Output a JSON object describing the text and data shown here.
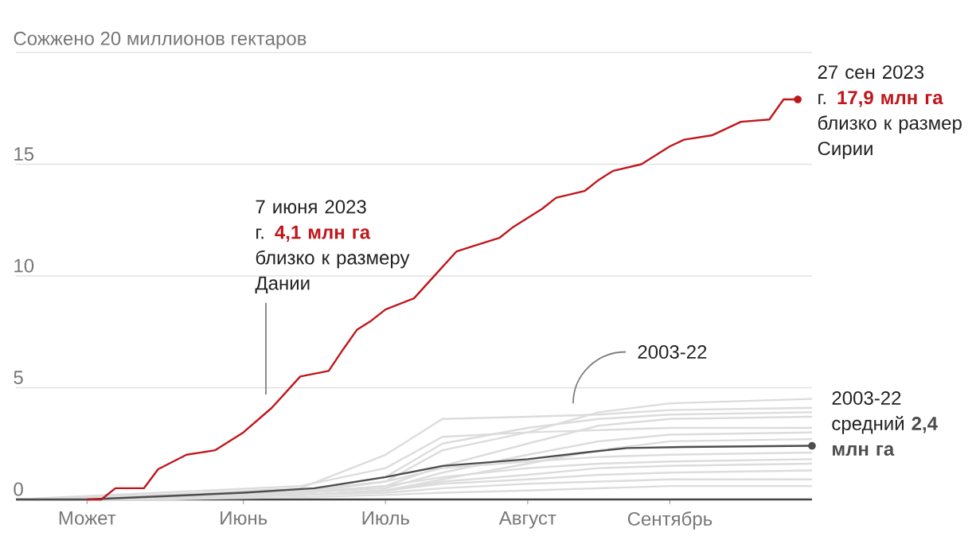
{
  "chart_data": {
    "type": "line",
    "categories": [
      null,
      null,
      null,
      null,
      null,
      "Может",
      null,
      null,
      null,
      null,
      null,
      null,
      null,
      null,
      null,
      null,
      "Июнь",
      null,
      null,
      null,
      null,
      null,
      null,
      null,
      null,
      null,
      "Июль",
      null,
      null,
      null,
      null,
      null,
      null,
      null,
      null,
      null,
      "Август",
      null,
      null,
      null,
      null,
      null,
      null,
      null,
      null,
      null,
      "Сентябрь",
      null,
      null,
      null,
      null,
      null,
      null,
      null,
      null,
      null,
      null
    ],
    "ylim": [
      0,
      20
    ],
    "yticks": [
      0,
      5,
      10,
      15,
      {
        "value": 20,
        "label": "Сожжено 20 миллионов гектаров"
      }
    ],
    "grid": "y",
    "series": [
      {
        "color": "#dcdcdc",
        "values": [
          0,
          null,
          null,
          null,
          null,
          null,
          null,
          null,
          null,
          null,
          0.1,
          null,
          null,
          null,
          null,
          null,
          null,
          null,
          null,
          null,
          0.3,
          null,
          null,
          null,
          null,
          null,
          0.8,
          null,
          null,
          null,
          2.2,
          null,
          null,
          null,
          null,
          null,
          3.0,
          null,
          null,
          null,
          null,
          3.9,
          null,
          null,
          null,
          null,
          4.3,
          null,
          null,
          null,
          null,
          null,
          null,
          null,
          null,
          null,
          4.5
        ]
      },
      {
        "color": "#dcdcdc",
        "values": [
          0,
          null,
          null,
          null,
          null,
          null,
          null,
          null,
          null,
          null,
          0.2,
          null,
          null,
          null,
          null,
          null,
          null,
          null,
          null,
          null,
          0.5,
          null,
          null,
          null,
          null,
          null,
          2.0,
          null,
          null,
          null,
          3.6,
          null,
          null,
          null,
          null,
          null,
          3.7,
          null,
          null,
          null,
          null,
          3.8,
          null,
          null,
          null,
          null,
          4.0,
          null,
          null,
          null,
          null,
          null,
          null,
          null,
          null,
          null,
          4.1
        ]
      },
      {
        "color": "#dcdcdc",
        "values": [
          0,
          null,
          null,
          null,
          null,
          null,
          null,
          null,
          null,
          null,
          0.1,
          null,
          null,
          null,
          null,
          null,
          null,
          null,
          null,
          null,
          0.4,
          null,
          null,
          null,
          null,
          null,
          1.0,
          null,
          null,
          null,
          2.5,
          null,
          null,
          null,
          null,
          null,
          3.2,
          null,
          null,
          null,
          null,
          3.6,
          null,
          null,
          null,
          null,
          3.8,
          null,
          null,
          null,
          null,
          null,
          null,
          null,
          null,
          null,
          3.9
        ]
      },
      {
        "color": "#dcdcdc",
        "values": [
          0,
          null,
          null,
          null,
          null,
          null,
          null,
          null,
          null,
          null,
          0.1,
          null,
          null,
          null,
          null,
          null,
          null,
          null,
          null,
          null,
          0.3,
          null,
          null,
          null,
          null,
          null,
          0.6,
          null,
          null,
          null,
          1.5,
          null,
          null,
          null,
          null,
          null,
          2.5,
          null,
          null,
          null,
          null,
          3.3,
          null,
          null,
          null,
          null,
          3.6,
          null,
          null,
          null,
          null,
          null,
          null,
          null,
          null,
          null,
          3.7
        ]
      },
      {
        "color": "#dcdcdc",
        "values": [
          0,
          null,
          null,
          null,
          null,
          null,
          null,
          null,
          null,
          null,
          0.3,
          null,
          null,
          null,
          null,
          null,
          null,
          null,
          null,
          null,
          0.6,
          null,
          null,
          null,
          null,
          null,
          1.4,
          null,
          null,
          null,
          2.8,
          null,
          null,
          null,
          null,
          null,
          3.0,
          null,
          null,
          null,
          null,
          3.1,
          null,
          null,
          null,
          null,
          3.2,
          null,
          null,
          null,
          null,
          null,
          null,
          null,
          null,
          null,
          3.2
        ]
      },
      {
        "color": "#dcdcdc",
        "values": [
          0,
          null,
          null,
          null,
          null,
          null,
          null,
          null,
          null,
          null,
          0.1,
          null,
          null,
          null,
          null,
          null,
          null,
          null,
          null,
          null,
          0.3,
          null,
          null,
          null,
          null,
          null,
          0.5,
          null,
          null,
          null,
          1.2,
          null,
          null,
          null,
          null,
          null,
          2.0,
          null,
          null,
          null,
          null,
          2.6,
          null,
          null,
          null,
          null,
          2.9,
          null,
          null,
          null,
          null,
          null,
          null,
          null,
          null,
          null,
          3.0
        ]
      },
      {
        "color": "#dcdcdc",
        "values": [
          0,
          null,
          null,
          null,
          null,
          null,
          null,
          null,
          null,
          null,
          0.1,
          null,
          null,
          null,
          null,
          null,
          null,
          null,
          null,
          null,
          0.2,
          null,
          null,
          null,
          null,
          null,
          0.4,
          null,
          null,
          null,
          0.9,
          null,
          null,
          null,
          null,
          null,
          1.6,
          null,
          null,
          null,
          null,
          2.2,
          null,
          null,
          null,
          null,
          2.6,
          null,
          null,
          null,
          null,
          null,
          null,
          null,
          null,
          null,
          2.7
        ]
      },
      {
        "color": "#dcdcdc",
        "values": [
          0,
          null,
          null,
          null,
          null,
          null,
          null,
          null,
          null,
          null,
          0.2,
          null,
          null,
          null,
          null,
          null,
          null,
          null,
          null,
          null,
          0.4,
          null,
          null,
          null,
          null,
          null,
          0.8,
          null,
          null,
          null,
          1.4,
          null,
          null,
          null,
          null,
          null,
          1.7,
          null,
          null,
          null,
          null,
          1.9,
          null,
          null,
          null,
          null,
          2.0,
          null,
          null,
          null,
          null,
          null,
          null,
          null,
          null,
          null,
          2.1
        ]
      },
      {
        "color": "#dcdcdc",
        "values": [
          0,
          null,
          null,
          null,
          null,
          null,
          null,
          null,
          null,
          null,
          0.1,
          null,
          null,
          null,
          null,
          null,
          null,
          null,
          null,
          null,
          0.3,
          null,
          null,
          null,
          null,
          null,
          0.6,
          null,
          null,
          null,
          1.0,
          null,
          null,
          null,
          null,
          null,
          1.4,
          null,
          null,
          null,
          null,
          1.6,
          null,
          null,
          null,
          null,
          1.7,
          null,
          null,
          null,
          null,
          null,
          null,
          null,
          null,
          null,
          1.8
        ]
      },
      {
        "color": "#dcdcdc",
        "values": [
          0,
          null,
          null,
          null,
          null,
          null,
          null,
          null,
          null,
          null,
          0.0,
          null,
          null,
          null,
          null,
          null,
          null,
          null,
          null,
          null,
          0.2,
          null,
          null,
          null,
          null,
          null,
          0.4,
          null,
          null,
          null,
          0.8,
          null,
          null,
          null,
          null,
          null,
          1.1,
          null,
          null,
          null,
          null,
          1.4,
          null,
          null,
          null,
          null,
          1.5,
          null,
          null,
          null,
          null,
          null,
          null,
          null,
          null,
          null,
          1.6
        ]
      },
      {
        "color": "#dcdcdc",
        "values": [
          0,
          null,
          null,
          null,
          null,
          null,
          null,
          null,
          null,
          null,
          0.1,
          null,
          null,
          null,
          null,
          null,
          null,
          null,
          null,
          null,
          0.2,
          null,
          null,
          null,
          null,
          null,
          0.4,
          null,
          null,
          null,
          0.7,
          null,
          null,
          null,
          null,
          null,
          0.9,
          null,
          null,
          null,
          null,
          1.1,
          null,
          null,
          null,
          null,
          1.2,
          null,
          null,
          null,
          null,
          null,
          null,
          null,
          null,
          null,
          1.3
        ]
      },
      {
        "color": "#dcdcdc",
        "values": [
          0,
          null,
          null,
          null,
          null,
          null,
          null,
          null,
          null,
          null,
          0.1,
          null,
          null,
          null,
          null,
          null,
          null,
          null,
          null,
          null,
          0.2,
          null,
          null,
          null,
          null,
          null,
          0.3,
          null,
          null,
          null,
          0.5,
          null,
          null,
          null,
          null,
          null,
          0.7,
          null,
          null,
          null,
          null,
          0.8,
          null,
          null,
          null,
          null,
          0.9,
          null,
          null,
          null,
          null,
          null,
          null,
          null,
          null,
          null,
          0.9
        ]
      },
      {
        "color": "#dcdcdc",
        "values": [
          0,
          null,
          null,
          null,
          null,
          null,
          null,
          null,
          null,
          null,
          0.0,
          null,
          null,
          null,
          null,
          null,
          null,
          null,
          null,
          null,
          0.1,
          null,
          null,
          null,
          null,
          null,
          0.2,
          null,
          null,
          null,
          0.3,
          null,
          null,
          null,
          null,
          null,
          0.4,
          null,
          null,
          null,
          null,
          0.5,
          null,
          null,
          null,
          null,
          0.6,
          null,
          null,
          null,
          null,
          null,
          null,
          null,
          null,
          null,
          0.6
        ]
      },
      {
        "color": "#4d4d4d",
        "values": [
          0,
          null,
          null,
          null,
          null,
          0,
          null,
          null,
          null,
          null,
          null,
          null,
          null,
          null,
          null,
          null,
          0.3,
          null,
          null,
          null,
          null,
          0.5,
          null,
          null,
          null,
          null,
          1.0,
          null,
          null,
          null,
          1.5,
          null,
          null,
          null,
          null,
          null,
          1.8,
          null,
          null,
          null,
          2.1,
          null,
          null,
          2.3,
          null,
          null,
          null,
          2.35,
          null,
          null,
          null,
          null,
          null,
          null,
          null,
          null,
          2.4
        ]
      },
      {
        "color": "#c0161b",
        "values": [
          null,
          null,
          null,
          null,
          null,
          0,
          0,
          0.5,
          null,
          0.5,
          1.35,
          null,
          2.0,
          null,
          2.2,
          null,
          3.0,
          null,
          4.1,
          null,
          5.5,
          null,
          5.75,
          6.7,
          7.6,
          8.0,
          8.5,
          null,
          9.0,
          9.7,
          null,
          11.1,
          11.3,
          null,
          11.7,
          12.2,
          12.6,
          13.0,
          13.5,
          null,
          13.8,
          14.3,
          14.7,
          null,
          15.0,
          15.4,
          15.8,
          16.1,
          null,
          16.3,
          16.6,
          16.9,
          null,
          17.0,
          17.9,
          17.9,
          null
        ]
      }
    ],
    "annotations": [
      "7 июня 2023 г. **4,1 млн га** близко к размеру Дании",
      "2003-22",
      "27 сен 2023 г. **17,9 млн га** близко к размер Сирии",
      "2003-22 средний **2,4 млн га**"
    ]
  }
}
